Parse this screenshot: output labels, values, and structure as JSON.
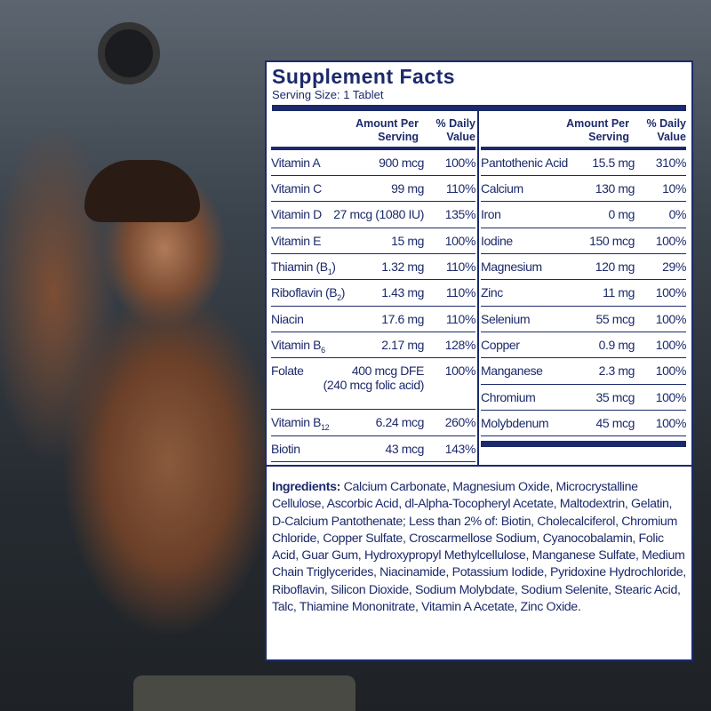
{
  "colors": {
    "navy": "#1c2a6b",
    "panel": "#ffffff"
  },
  "panel": {
    "title": "Supplement Facts",
    "serving_size": "Serving Size: 1 Tablet",
    "header": {
      "amount": "Amount Per",
      "serving": "Serving",
      "daily": "% Daily",
      "value": "Value"
    },
    "left": [
      {
        "name": "Vitamin A",
        "sub": "",
        "suffix": "",
        "amount": "900 mcg",
        "dv": "100%"
      },
      {
        "name": "Vitamin C",
        "sub": "",
        "suffix": "",
        "amount": "99 mg",
        "dv": "110%"
      },
      {
        "name": "Vitamin D",
        "sub": "",
        "suffix": "",
        "amount": "27 mcg (1080 IU)",
        "dv": "135%"
      },
      {
        "name": "Vitamin E",
        "sub": "",
        "suffix": "",
        "amount": "15 mg",
        "dv": "100%"
      },
      {
        "name": "Thiamin (B",
        "sub": "1",
        "suffix": ")",
        "amount": "1.32 mg",
        "dv": "110%"
      },
      {
        "name": "Riboflavin (B",
        "sub": "2",
        "suffix": ")",
        "amount": "1.43 mg",
        "dv": "110%"
      },
      {
        "name": "Niacin",
        "sub": "",
        "suffix": "",
        "amount": "17.6 mg",
        "dv": "110%"
      },
      {
        "name": "Vitamin B",
        "sub": "6",
        "suffix": "",
        "amount": "2.17 mg",
        "dv": "128%"
      },
      {
        "name": "Folate",
        "sub": "",
        "suffix": "",
        "amount": "400 mcg DFE",
        "amount2": "(240 mcg folic acid)",
        "dv": "100%"
      },
      {
        "name": "Vitamin B",
        "sub": "12",
        "suffix": "",
        "amount": "6.24 mcg",
        "dv": "260%"
      },
      {
        "name": "Biotin",
        "sub": "",
        "suffix": "",
        "amount": "43 mcg",
        "dv": "143%"
      }
    ],
    "right": [
      {
        "name": "Pantothenic Acid",
        "amount": "15.5 mg",
        "dv": "310%"
      },
      {
        "name": "Calcium",
        "amount": "130 mg",
        "dv": "10%"
      },
      {
        "name": "Iron",
        "amount": "0 mg",
        "dv": "0%"
      },
      {
        "name": "Iodine",
        "amount": "150 mcg",
        "dv": "100%"
      },
      {
        "name": "Magnesium",
        "amount": "120 mg",
        "dv": "29%"
      },
      {
        "name": "Zinc",
        "amount": "11 mg",
        "dv": "100%"
      },
      {
        "name": "Selenium",
        "amount": "55 mcg",
        "dv": "100%"
      },
      {
        "name": "Copper",
        "amount": "0.9 mg",
        "dv": "100%"
      },
      {
        "name": "Manganese",
        "amount": "2.3 mg",
        "dv": "100%"
      },
      {
        "name": "Chromium",
        "amount": "35 mcg",
        "dv": "100%"
      },
      {
        "name": "Molybdenum",
        "amount": "45 mcg",
        "dv": "100%"
      }
    ],
    "ingredients_label": "Ingredients:",
    "ingredients_text": "Calcium Carbonate, Magnesium Oxide, Microcrystalline Cellulose, Ascorbic Acid, dl-Alpha-Tocopheryl Acetate, Maltodextrin, Gelatin, D-Calcium Pantothenate;  Less than 2% of: Biotin, Cholecalciferol, Chromium Chloride, Copper Sulfate, Croscarmellose Sodium, Cyanocobalamin, Folic Acid, Guar Gum, Hydroxypropyl Methylcellulose, Manganese Sulfate, Medium Chain Triglycerides, Niacinamide, Potassium Iodide, Pyridoxine Hydrochloride, Riboflavin, Silicon Dioxide, Sodium Molybdate, Sodium Selenite, Stearic Acid, Talc, Thiamine Mononitrate, Vitamin A Acetate, Zinc Oxide."
  }
}
